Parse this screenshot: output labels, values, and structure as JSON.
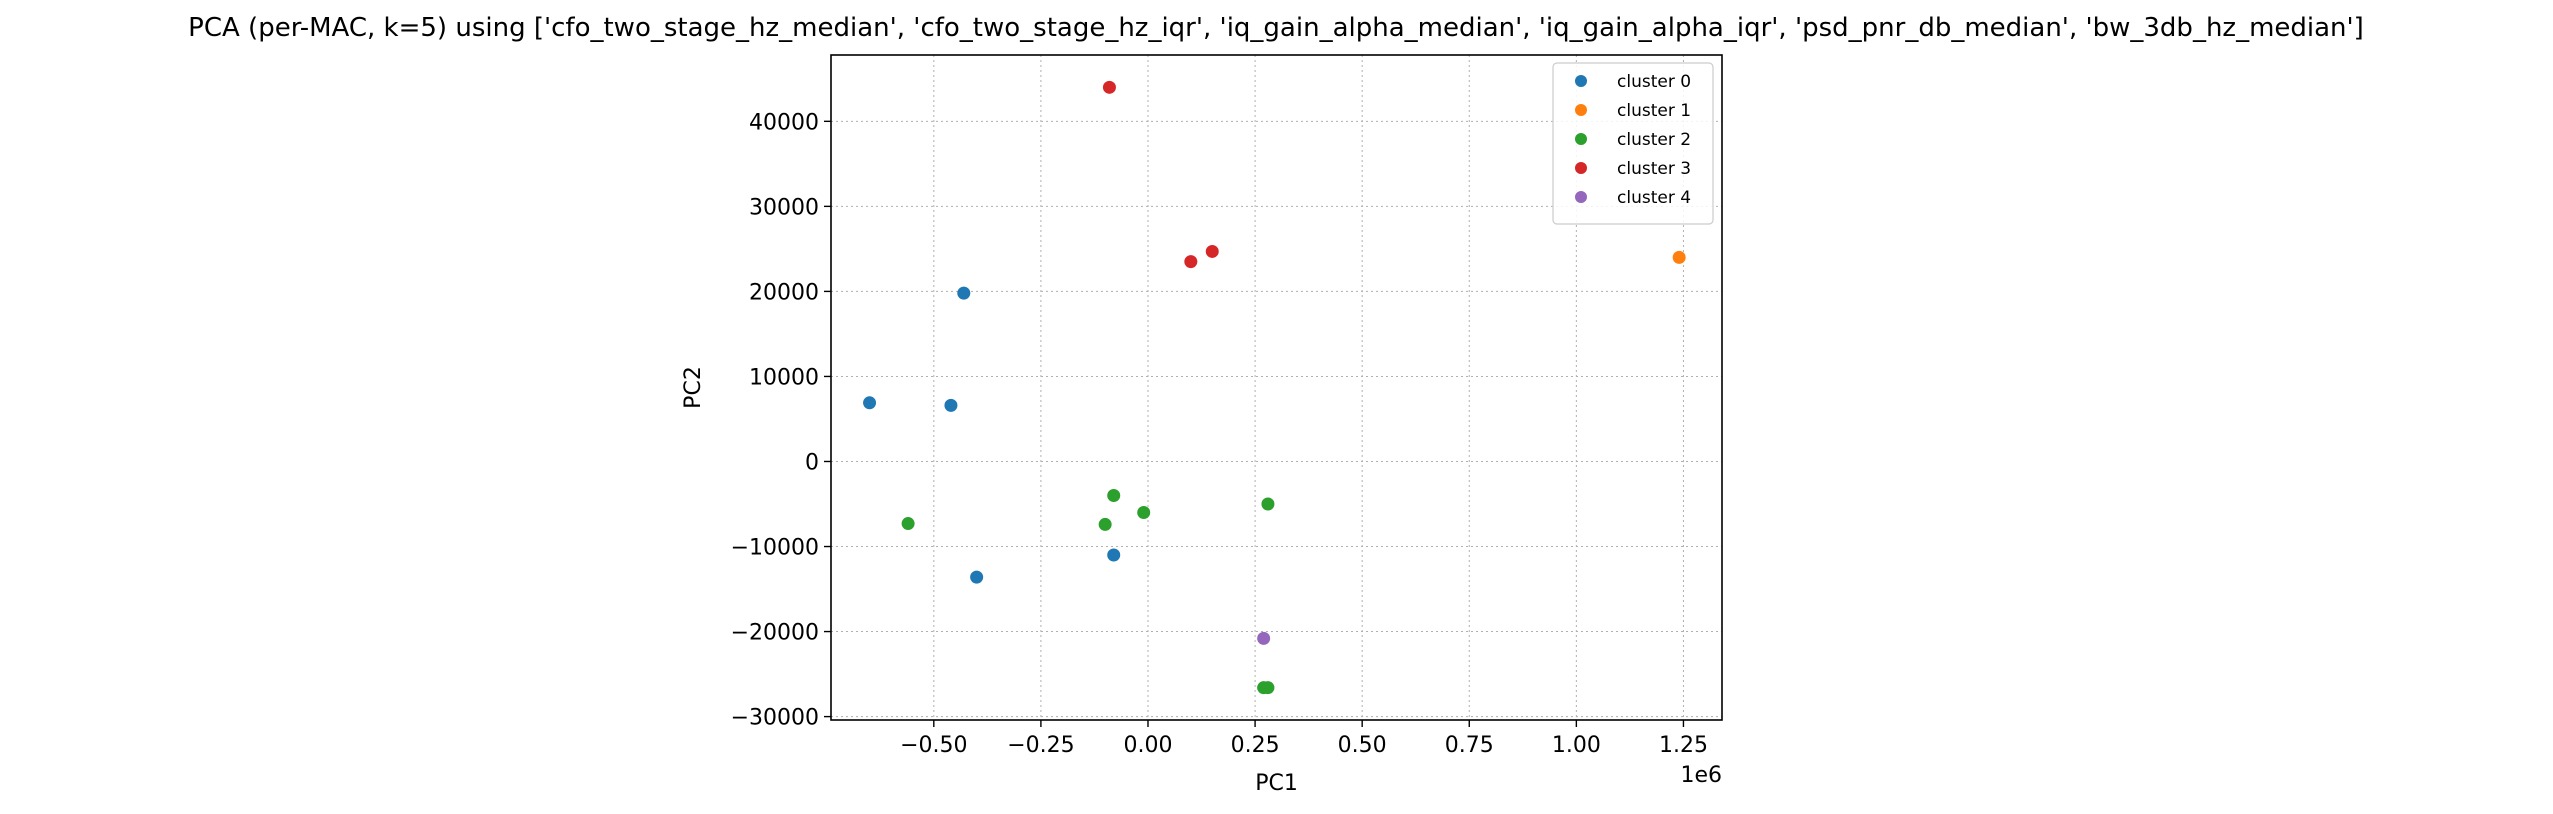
{
  "chart_data": {
    "type": "scatter",
    "title": "PCA (per-MAC, k=5) using ['cfo_two_stage_hz_median', 'cfo_two_stage_hz_iqr', 'iq_gain_alpha_median', 'iq_gain_alpha_iqr', 'psd_pnr_db_median', 'bw_3db_hz_median']",
    "xlabel": "PC1",
    "ylabel": "PC2",
    "x_offset_label": "1e6",
    "xlim": [
      -0.74,
      1.34
    ],
    "ylim": [
      -30400,
      47800
    ],
    "xticks": [
      -0.5,
      -0.25,
      0.0,
      0.25,
      0.5,
      0.75,
      1.0,
      1.25
    ],
    "xtick_labels": [
      "−0.50",
      "−0.25",
      "0.00",
      "0.25",
      "0.50",
      "0.75",
      "1.00",
      "1.25"
    ],
    "yticks": [
      -30000,
      -20000,
      -10000,
      0,
      10000,
      20000,
      30000,
      40000
    ],
    "ytick_labels": [
      "−30000",
      "−20000",
      "−10000",
      "0",
      "10000",
      "20000",
      "30000",
      "40000"
    ],
    "grid": true,
    "legend_position": "top-right",
    "series": [
      {
        "name": "cluster 0",
        "color": "#1f77b4",
        "x": [
          -0.65,
          -0.46,
          -0.43,
          -0.4,
          -0.08
        ],
        "y": [
          6900,
          6600,
          19800,
          -13600,
          -11000
        ]
      },
      {
        "name": "cluster 1",
        "color": "#ff7f0e",
        "x": [
          1.24
        ],
        "y": [
          24000
        ]
      },
      {
        "name": "cluster 2",
        "color": "#2ca02c",
        "x": [
          -0.56,
          -0.1,
          -0.08,
          -0.01,
          0.28,
          0.27,
          0.28
        ],
        "y": [
          -7300,
          -7400,
          -4000,
          -6000,
          -5000,
          -26600,
          -26600
        ]
      },
      {
        "name": "cluster 3",
        "color": "#d62728",
        "x": [
          -0.09,
          0.1,
          0.15
        ],
        "y": [
          44000,
          23500,
          24700
        ]
      },
      {
        "name": "cluster 4",
        "color": "#9467bd",
        "x": [
          0.27
        ],
        "y": [
          -20800
        ]
      }
    ]
  }
}
